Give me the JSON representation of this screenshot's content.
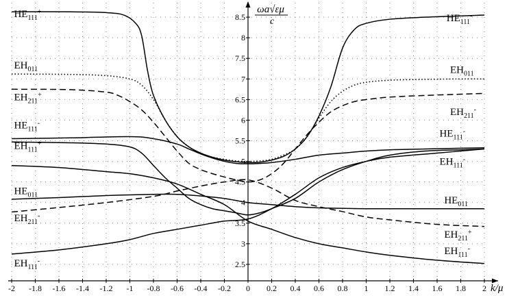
{
  "chart_data": {
    "type": "line",
    "title": "",
    "xlabel": "k/μ",
    "ylabel": {
      "numerator": "ωa√εμ",
      "denominator": "c"
    },
    "xlim": [
      -2,
      2
    ],
    "ylim": [
      2.1,
      8.85
    ],
    "grid": true,
    "x_ticks": [
      "-2",
      "-1.8",
      "-1.6",
      "-1.4",
      "-1.2",
      "-1",
      "-0.8",
      "-0.6",
      "-0.4",
      "-0.2",
      "0",
      "0.2",
      "0.4",
      "0.6",
      "0.8",
      "1",
      "1.2",
      "1.4",
      "1.6",
      "1.8",
      "2"
    ],
    "y_ticks": [
      "2.5",
      "3",
      "3.5",
      "4",
      "4.5",
      "5",
      "5.5",
      "6",
      "6.5",
      "7",
      "7.5",
      "8",
      "8.5"
    ],
    "series": [
      {
        "name": "HE111+ / HE111-",
        "style": "solid",
        "x": [
          -2,
          -1.5,
          -1.2,
          -1.05,
          -0.95,
          -0.9,
          -0.85,
          -0.8,
          -0.7,
          -0.6,
          -0.5,
          -0.4,
          -0.3,
          -0.2,
          -0.1,
          0,
          0.1,
          0.2,
          0.3,
          0.4,
          0.5,
          0.6,
          0.7,
          0.8,
          0.9,
          1,
          1.2,
          1.5,
          1.8,
          2
        ],
        "y": [
          8.63,
          8.63,
          8.61,
          8.55,
          8.35,
          8.05,
          7.2,
          6.6,
          6.0,
          5.6,
          5.35,
          5.2,
          5.1,
          5.03,
          4.99,
          4.97,
          4.98,
          5.03,
          5.12,
          5.3,
          5.6,
          6.1,
          6.8,
          7.75,
          8.2,
          8.35,
          8.45,
          8.5,
          8.53,
          8.55
        ]
      },
      {
        "name": "EH011",
        "style": "dotted",
        "x": [
          -2,
          -1.5,
          -1.2,
          -1,
          -0.9,
          -0.8,
          -0.7,
          -0.6,
          -0.5,
          -0.4,
          -0.3,
          -0.2,
          -0.1,
          0,
          0.1,
          0.2,
          0.3,
          0.4,
          0.5,
          0.6,
          0.7,
          0.8,
          0.9,
          1,
          1.2,
          1.5,
          1.8,
          2
        ],
        "y": [
          7.12,
          7.11,
          7.08,
          7.0,
          6.85,
          6.5,
          6.0,
          5.6,
          5.35,
          5.2,
          5.1,
          5.05,
          5.01,
          5.0,
          5.01,
          5.05,
          5.15,
          5.3,
          5.6,
          6.05,
          6.45,
          6.7,
          6.85,
          6.92,
          6.97,
          6.99,
          7.0,
          7.0
        ]
      },
      {
        "name": "EH211+ / EH211-",
        "style": "dashed",
        "x": [
          -2,
          -1.5,
          -1.2,
          -1.1,
          -1,
          -0.9,
          -0.8,
          -0.7,
          -0.6,
          -0.5,
          -0.4,
          -0.3,
          -0.2,
          -0.1,
          0,
          0.1,
          0.2,
          0.3,
          0.4,
          0.5,
          0.6,
          0.7,
          0.8,
          0.9,
          1,
          1.2,
          1.5,
          1.8,
          2
        ],
        "y": [
          6.75,
          6.74,
          6.68,
          6.6,
          6.45,
          6.25,
          5.95,
          5.6,
          5.25,
          4.95,
          4.8,
          4.7,
          4.62,
          4.55,
          4.5,
          4.55,
          4.7,
          4.95,
          5.3,
          5.65,
          5.95,
          6.2,
          6.35,
          6.45,
          6.5,
          6.56,
          6.6,
          6.63,
          6.65
        ]
      },
      {
        "name": "HE111- (branch)",
        "style": "solid",
        "x": [
          -2,
          -1.5,
          -1,
          -0.8,
          -0.6,
          -0.5,
          -0.4,
          -0.3,
          -0.2,
          -0.1,
          0,
          0.1,
          0.2,
          0.4,
          0.6,
          0.8,
          1,
          1.2,
          1.5,
          1.8,
          2
        ],
        "y": [
          5.55,
          5.57,
          5.6,
          5.55,
          5.42,
          5.3,
          5.18,
          5.08,
          5.0,
          4.95,
          4.94,
          4.95,
          4.97,
          5.05,
          5.15,
          5.2,
          5.25,
          5.28,
          5.3,
          5.32,
          5.33
        ]
      },
      {
        "name": "EH111+ / EH111-",
        "style": "solid",
        "x": [
          -2,
          -1.5,
          -1.2,
          -1,
          -0.9,
          -0.8,
          -0.7,
          -0.6,
          -0.5,
          -0.4,
          -0.3,
          -0.2,
          -0.1,
          0,
          0.1,
          0.2,
          0.4,
          0.6,
          0.8,
          1,
          1.2,
          1.5,
          1.8,
          2
        ],
        "y": [
          5.47,
          5.45,
          5.42,
          5.35,
          5.2,
          4.9,
          4.6,
          4.35,
          4.1,
          3.95,
          3.85,
          3.8,
          3.75,
          3.7,
          3.75,
          3.85,
          4.1,
          4.5,
          4.8,
          5.0,
          5.15,
          5.25,
          5.28,
          5.3
        ]
      },
      {
        "name": "HE011",
        "style": "solid",
        "x": [
          -2,
          -1.6,
          -1.2,
          -0.8,
          -0.6,
          -0.4,
          -0.2,
          0,
          0.2,
          0.4,
          0.6,
          0.8,
          1,
          1.4,
          2
        ],
        "y": [
          4.08,
          4.12,
          4.17,
          4.2,
          4.2,
          4.16,
          4.1,
          4.0,
          3.95,
          3.9,
          3.87,
          3.86,
          3.85,
          3.85,
          3.85
        ]
      },
      {
        "name": "EH211- (lower)",
        "style": "dashed",
        "x": [
          -2,
          -1.6,
          -1.2,
          -0.8,
          -0.6,
          -0.4,
          -0.2,
          0,
          0.2,
          0.4,
          0.6,
          0.8,
          1,
          1.2,
          1.6,
          2
        ],
        "y": [
          3.77,
          3.88,
          4.0,
          4.15,
          4.28,
          4.4,
          4.5,
          4.55,
          4.35,
          4.05,
          3.9,
          3.78,
          3.65,
          3.58,
          3.47,
          3.42
        ]
      },
      {
        "name": "EH111- (lower)",
        "style": "solid",
        "x": [
          -2,
          -1.6,
          -1.2,
          -1,
          -0.8,
          -0.6,
          -0.4,
          -0.2,
          0,
          0.2,
          0.4,
          0.6,
          0.8,
          1,
          1.2,
          1.6,
          2
        ],
        "y": [
          2.75,
          2.85,
          3.0,
          3.1,
          3.25,
          3.35,
          3.45,
          3.55,
          3.6,
          3.85,
          4.2,
          4.6,
          4.85,
          5.0,
          5.1,
          5.2,
          5.3
        ]
      },
      {
        "name": "EH111- (crossing)",
        "style": "solid",
        "x": [
          -2,
          -1.6,
          -1.2,
          -1,
          -0.8,
          -0.6,
          -0.4,
          -0.2,
          0,
          0.2,
          0.4,
          0.6,
          0.8,
          1,
          1.2,
          1.6,
          2
        ],
        "y": [
          4.9,
          4.85,
          4.75,
          4.7,
          4.6,
          4.45,
          4.2,
          3.95,
          3.55,
          3.35,
          3.15,
          3.0,
          2.9,
          2.8,
          2.72,
          2.6,
          2.52
        ]
      }
    ],
    "annotations": [
      {
        "id": "he111p_left",
        "base": "HE",
        "sub": "111",
        "sup": "+",
        "x": -1.98,
        "y": 8.5
      },
      {
        "id": "eh011_left",
        "base": "EH",
        "sub": "011",
        "sup": "",
        "x": -1.98,
        "y": 7.25
      },
      {
        "id": "eh211p_left",
        "base": "EH",
        "sub": "211",
        "sup": "+",
        "x": -1.98,
        "y": 6.48
      },
      {
        "id": "he111m_left",
        "base": "HE",
        "sub": "111",
        "sup": "-",
        "x": -1.98,
        "y": 5.8
      },
      {
        "id": "eh111p_left",
        "base": "EH",
        "sub": "111",
        "sup": "+",
        "x": -1.98,
        "y": 5.3
      },
      {
        "id": "he011_left",
        "base": "HE",
        "sub": "011",
        "sup": "",
        "x": -1.98,
        "y": 4.2
      },
      {
        "id": "eh211m_left",
        "base": "EH",
        "sub": "211",
        "sup": "-",
        "x": -1.98,
        "y": 3.55
      },
      {
        "id": "eh111m_left",
        "base": "EH",
        "sub": "111",
        "sup": "-",
        "x": -1.98,
        "y": 2.45
      },
      {
        "id": "he111m_right",
        "base": "HE",
        "sub": "111",
        "sup": "-",
        "x": 1.68,
        "y": 8.4
      },
      {
        "id": "eh011_right",
        "base": "EH",
        "sub": "011",
        "sup": "",
        "x": 1.71,
        "y": 7.15
      },
      {
        "id": "eh211_right",
        "base": "EH",
        "sub": "211",
        "sup": "-",
        "x": 1.71,
        "y": 6.12
      },
      {
        "id": "he111m_right2",
        "base": "HE",
        "sub": "111",
        "sup": "-",
        "x": 1.62,
        "y": 5.6
      },
      {
        "id": "eh111m_right",
        "base": "EH",
        "sub": "111",
        "sup": "-",
        "x": 1.62,
        "y": 4.92
      },
      {
        "id": "he011_right",
        "base": "HE",
        "sub": "011",
        "sup": "",
        "x": 1.66,
        "y": 3.98
      },
      {
        "id": "eh211p_right",
        "base": "EH",
        "sub": "211",
        "sup": "+",
        "x": 1.66,
        "y": 3.15
      },
      {
        "id": "eh111m_right2",
        "base": "EH",
        "sub": "111",
        "sup": "-",
        "x": 1.66,
        "y": 2.75
      }
    ]
  }
}
